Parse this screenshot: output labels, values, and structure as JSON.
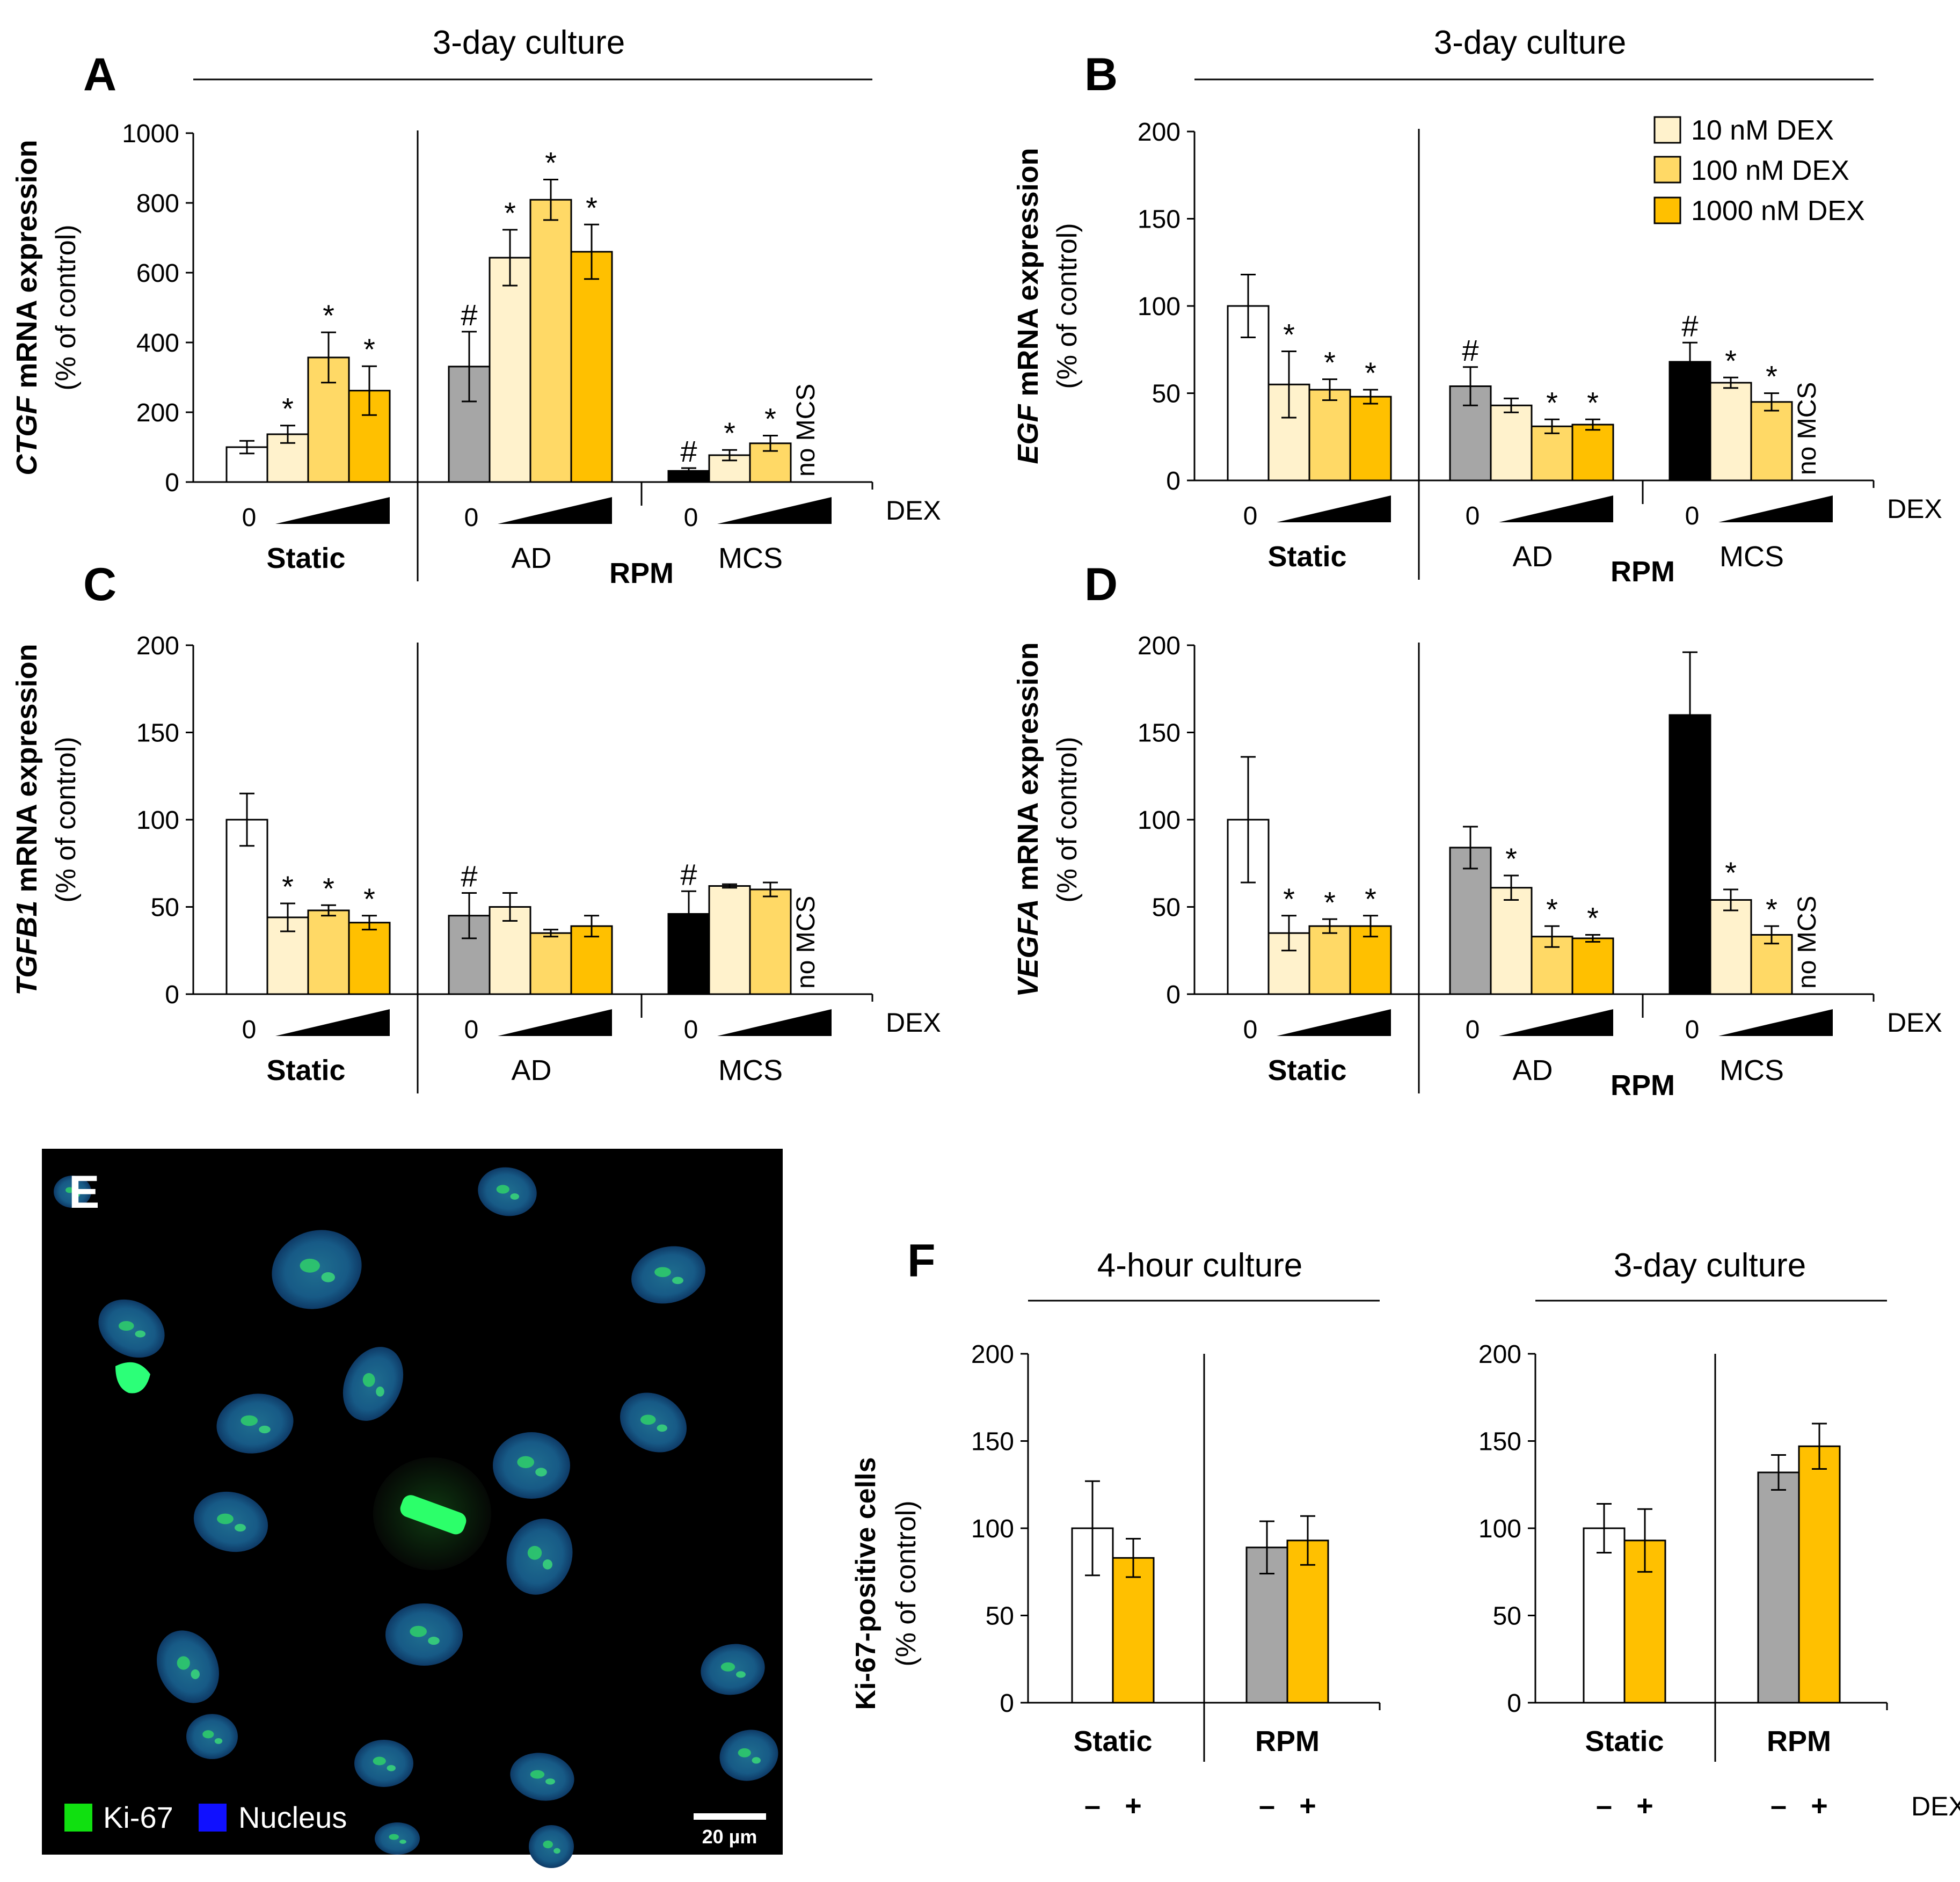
{
  "figure": {
    "legend": [
      "10 nM DEX",
      "100 nM DEX",
      "1000 nM DEX"
    ],
    "colors": {
      "control": "#ffffff",
      "gray": "#a6a6a6",
      "black": "#000000",
      "d10": "#fff2cc",
      "d100": "#ffd966",
      "d1000": "#ffc000"
    }
  },
  "chart_data": [
    {
      "type": "bar",
      "panel": "A",
      "title": "3-day culture",
      "ylabel": "CTGF mRNA expression",
      "ylabel_italic_part": "CTGF",
      "ylabel_rest": " mRNA expression",
      "ylabel2": "(% of control)",
      "ylim": [
        0,
        1000
      ],
      "yticks": [
        0,
        200,
        400,
        600,
        800,
        1000
      ],
      "x_label": "DEX",
      "rpm_label": "RPM",
      "groups": [
        {
          "name": "Static",
          "bold": true,
          "zero": "0",
          "values": [
            100,
            137,
            357,
            262
          ],
          "errors": [
            18,
            25,
            72,
            70
          ],
          "marks": [
            "",
            "*",
            "*",
            "*"
          ],
          "colors": [
            "control",
            "d10",
            "d100",
            "d1000"
          ]
        },
        {
          "name": "AD",
          "bold": false,
          "zero": "0",
          "values": [
            331,
            643,
            809,
            660
          ],
          "errors": [
            100,
            80,
            58,
            78
          ],
          "marks": [
            "#",
            "*",
            "*",
            "*"
          ],
          "colors": [
            "gray",
            "d10",
            "d100",
            "d1000"
          ]
        },
        {
          "name": "MCS",
          "bold": false,
          "zero": "0",
          "values": [
            32,
            77,
            111,
            null
          ],
          "errors": [
            8,
            15,
            22,
            null
          ],
          "marks": [
            "#",
            "*",
            "*",
            ""
          ],
          "colors": [
            "black",
            "d10",
            "d100",
            "d1000"
          ],
          "missing_label": "no MCS"
        }
      ]
    },
    {
      "type": "bar",
      "panel": "B",
      "title": "3-day culture",
      "ylabel": "EGF mRNA expression",
      "ylabel_italic_part": "EGF",
      "ylabel_rest": " mRNA expression",
      "ylabel2": "(% of control)",
      "ylim": [
        0,
        200
      ],
      "yticks": [
        0,
        50,
        100,
        150,
        200
      ],
      "x_label": "DEX",
      "rpm_label": "RPM",
      "groups": [
        {
          "name": "Static",
          "bold": true,
          "zero": "0",
          "values": [
            100,
            55,
            52,
            48
          ],
          "errors": [
            18,
            19,
            6,
            4
          ],
          "marks": [
            "",
            "*",
            "*",
            "*"
          ],
          "colors": [
            "control",
            "d10",
            "d100",
            "d1000"
          ]
        },
        {
          "name": "AD",
          "bold": false,
          "zero": "0",
          "values": [
            54,
            43,
            31,
            32
          ],
          "errors": [
            11,
            4,
            4,
            3
          ],
          "marks": [
            "#",
            "",
            "*",
            "*"
          ],
          "colors": [
            "gray",
            "d10",
            "d100",
            "d1000"
          ]
        },
        {
          "name": "MCS",
          "bold": false,
          "zero": "0",
          "values": [
            68,
            56,
            45,
            null
          ],
          "errors": [
            11,
            3,
            5,
            null
          ],
          "marks": [
            "#",
            "*",
            "*",
            ""
          ],
          "colors": [
            "black",
            "d10",
            "d100",
            "d1000"
          ],
          "missing_label": "no MCS"
        }
      ]
    },
    {
      "type": "bar",
      "panel": "C",
      "title": "",
      "ylabel": "TGFB1 mRNA expression",
      "ylabel_italic_part": "TGFB1",
      "ylabel_rest": " mRNA expression",
      "ylabel2": "(% of control)",
      "ylim": [
        0,
        200
      ],
      "yticks": [
        0,
        50,
        100,
        150,
        200
      ],
      "x_label": "DEX",
      "rpm_label": "",
      "groups": [
        {
          "name": "Static",
          "bold": true,
          "zero": "0",
          "values": [
            100,
            44,
            48,
            41
          ],
          "errors": [
            15,
            8,
            3,
            4
          ],
          "marks": [
            "",
            "*",
            "*",
            "*"
          ],
          "colors": [
            "control",
            "d10",
            "d100",
            "d1000"
          ]
        },
        {
          "name": "AD",
          "bold": false,
          "zero": "0",
          "values": [
            45,
            50,
            35,
            39
          ],
          "errors": [
            13,
            8,
            2,
            6
          ],
          "marks": [
            "#",
            "",
            "",
            ""
          ],
          "colors": [
            "gray",
            "d10",
            "d100",
            "d1000"
          ]
        },
        {
          "name": "MCS",
          "bold": false,
          "zero": "0",
          "values": [
            46,
            62,
            60,
            null
          ],
          "errors": [
            13,
            1,
            4,
            null
          ],
          "marks": [
            "#",
            "",
            "",
            ""
          ],
          "colors": [
            "black",
            "d10",
            "d100",
            "d1000"
          ],
          "missing_label": "no MCS"
        }
      ]
    },
    {
      "type": "bar",
      "panel": "D",
      "title": "",
      "ylabel": "VEGFA mRNA expression",
      "ylabel_italic_part": "VEGFA",
      "ylabel_rest": " mRNA expression",
      "ylabel2": "(% of control)",
      "ylim": [
        0,
        200
      ],
      "yticks": [
        0,
        50,
        100,
        150,
        200
      ],
      "x_label": "DEX",
      "rpm_label": "RPM",
      "groups": [
        {
          "name": "Static",
          "bold": true,
          "zero": "0",
          "values": [
            100,
            35,
            39,
            39
          ],
          "errors": [
            36,
            10,
            4,
            6
          ],
          "marks": [
            "",
            "*",
            "*",
            "*"
          ],
          "colors": [
            "control",
            "d10",
            "d100",
            "d1000"
          ]
        },
        {
          "name": "AD",
          "bold": false,
          "zero": "0",
          "values": [
            84,
            61,
            33,
            32
          ],
          "errors": [
            12,
            7,
            6,
            2
          ],
          "marks": [
            "",
            "*",
            "*",
            "*"
          ],
          "colors": [
            "gray",
            "d10",
            "d100",
            "d1000"
          ]
        },
        {
          "name": "MCS",
          "bold": false,
          "zero": "0",
          "values": [
            160,
            54,
            34,
            null
          ],
          "errors": [
            36,
            6,
            5,
            null
          ],
          "marks": [
            "",
            "*",
            "*",
            ""
          ],
          "colors": [
            "black",
            "d10",
            "d100",
            "d1000"
          ],
          "missing_label": "no MCS"
        }
      ]
    },
    {
      "type": "bar",
      "panel": "F",
      "title": "4-hour culture",
      "ylabel": "Ki-67-positive cells",
      "ylabel2": "(% of control)",
      "ylim": [
        0,
        200
      ],
      "yticks": [
        0,
        50,
        100,
        150,
        200
      ],
      "x_label": "",
      "groups": [
        {
          "name": "Static",
          "labels": [
            "–",
            "+"
          ],
          "values": [
            100,
            83
          ],
          "errors": [
            27,
            11
          ],
          "colors": [
            "control",
            "d1000"
          ]
        },
        {
          "name": "RPM",
          "labels": [
            "–",
            "+"
          ],
          "values": [
            89,
            93
          ],
          "errors": [
            15,
            14
          ],
          "colors": [
            "gray",
            "d1000"
          ]
        }
      ]
    },
    {
      "type": "bar",
      "panel": "F",
      "title": "3-day culture",
      "ylabel": "",
      "ylabel2": "",
      "ylim": [
        0,
        200
      ],
      "yticks": [
        0,
        50,
        100,
        150,
        200
      ],
      "x_label": "DEX",
      "groups": [
        {
          "name": "Static",
          "labels": [
            "–",
            "+"
          ],
          "values": [
            100,
            93
          ],
          "errors": [
            14,
            18
          ],
          "colors": [
            "control",
            "d1000"
          ]
        },
        {
          "name": "RPM",
          "labels": [
            "–",
            "+"
          ],
          "values": [
            132,
            147
          ],
          "errors": [
            10,
            13
          ],
          "colors": [
            "gray",
            "d1000"
          ]
        }
      ]
    }
  ],
  "micrograph": {
    "panel": "E",
    "legend": [
      {
        "label": "Ki-67",
        "color": "#10e010"
      },
      {
        "label": "Nucleus",
        "color": "#1010ff"
      }
    ],
    "scale_bar": "20 µm"
  }
}
